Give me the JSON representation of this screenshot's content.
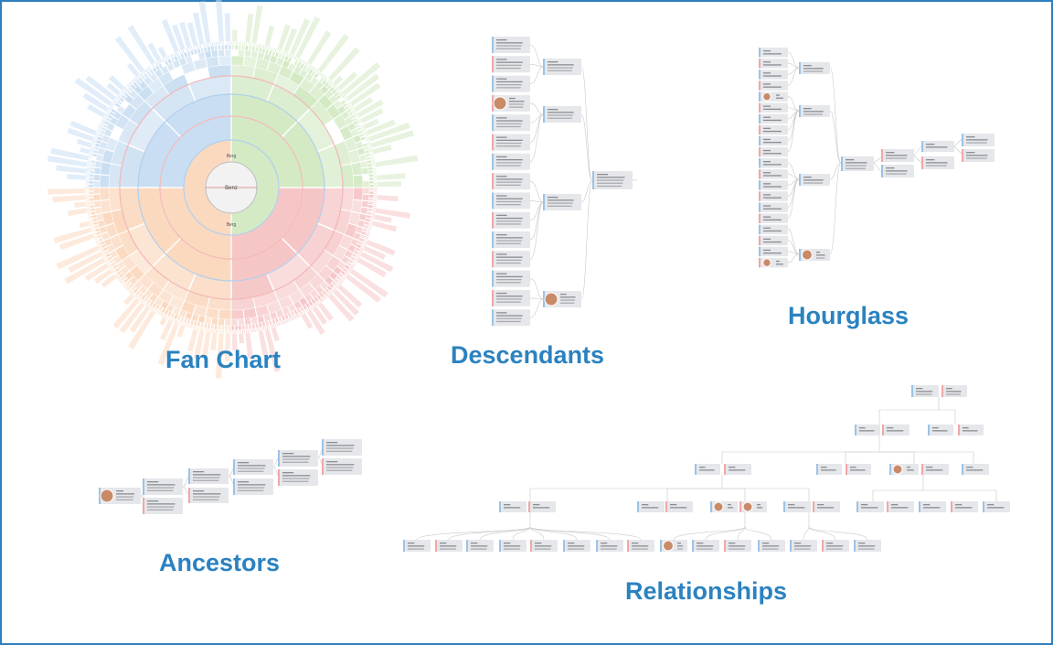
{
  "labels": {
    "fan_chart": "Fan Chart",
    "descendants": "Descendants",
    "hourglass": "Hourglass",
    "ancestors": "Ancestors",
    "relationships": "Relationships"
  },
  "colors": {
    "border": "#2f7fbf",
    "label": "#2b82c0",
    "male": "#9cc3e6",
    "female": "#f0a7a7",
    "fan_blue": "#c9def2",
    "fan_green": "#d3eac4",
    "fan_orange": "#fbd9bf",
    "fan_red": "#f6c6c6",
    "node_bg": "#e6e7ea",
    "line": "#c9c9c9"
  },
  "fan_center_names": {
    "center": "Benz",
    "upper": "Berg",
    "lower": "Berg"
  }
}
